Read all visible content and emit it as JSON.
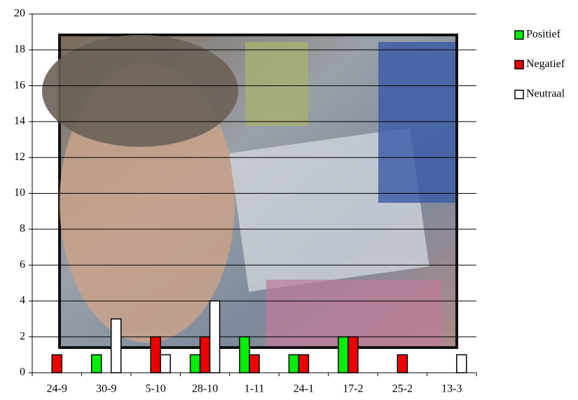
{
  "chart_data": {
    "type": "bar",
    "categories": [
      "24-9",
      "30-9",
      "5-10",
      "28-10",
      "1-11",
      "24-1",
      "17-2",
      "25-2",
      "13-3"
    ],
    "series": [
      {
        "name": "Positief",
        "color": "#00ee00",
        "values": [
          0,
          1,
          0,
          1,
          2,
          1,
          2,
          0,
          0
        ]
      },
      {
        "name": "Negatief",
        "color": "#ee0000",
        "values": [
          1,
          0,
          2,
          2,
          1,
          1,
          2,
          1,
          0
        ]
      },
      {
        "name": "Neutraal",
        "color": "#ffffff",
        "values": [
          0,
          3,
          1,
          4,
          0,
          0,
          0,
          0,
          1
        ]
      }
    ],
    "ylim": [
      0,
      20
    ],
    "yticks": [
      0,
      2,
      4,
      6,
      8,
      10,
      12,
      14,
      16,
      18,
      20
    ],
    "grid": true,
    "legend": "right"
  }
}
